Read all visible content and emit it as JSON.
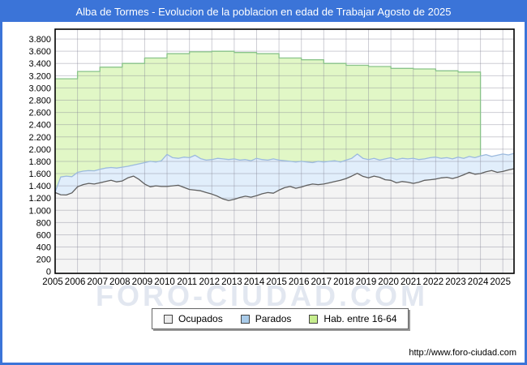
{
  "window": {
    "title": "Alba de Tormes - Evolucion de la poblacion en edad de Trabajar Agosto de 2025"
  },
  "watermark": "FORO-CIUDAD.COM",
  "footer": {
    "url": "http://www.foro-ciudad.com"
  },
  "colors": {
    "frame_blue": "#3b74d8",
    "grid": "rgba(130,130,148,0.40)",
    "axis_frame": "#000000"
  },
  "legend": {
    "items": [
      {
        "label": "Ocupados",
        "color": "#ebebeb"
      },
      {
        "label": "Parados",
        "color": "#a9cbe9"
      },
      {
        "label": "Hab. entre 16-64",
        "color": "#c7ee8e"
      }
    ]
  },
  "chart_data": {
    "type": "area",
    "title": "Alba de Tormes - Evolucion de la poblacion en edad de Trabajar Agosto de 2025",
    "xlabel": "",
    "ylabel": "",
    "x_axis": {
      "min": 2005,
      "max": 2025.5,
      "ticks": [
        "2005",
        "2006",
        "2007",
        "2008",
        "2009",
        "2010",
        "2011",
        "2012",
        "2013",
        "2014",
        "2015",
        "2016",
        "2017",
        "2018",
        "2019",
        "2020",
        "2021",
        "2022",
        "2023",
        "2024",
        "2025"
      ]
    },
    "y_axis": {
      "min": 0,
      "max": 3800,
      "tick_step": 200,
      "ticks": [
        "0",
        "200",
        "400",
        "600",
        "800",
        "1.000",
        "1.200",
        "1.400",
        "1.600",
        "1.800",
        "2.000",
        "2.200",
        "2.400",
        "2.600",
        "2.800",
        "3.000",
        "3.200",
        "3.400",
        "3.600",
        "3.800"
      ]
    },
    "grid": true,
    "legend_position": "bottom",
    "series": [
      {
        "name": "Hab. entre 16-64",
        "type": "step-annual",
        "color_line": "#8ac48a",
        "color_fill": "#e1f7c6",
        "x_start": 2005,
        "x_step": 1,
        "x_end": 2024,
        "values": [
          3150,
          3270,
          3340,
          3400,
          3490,
          3560,
          3590,
          3600,
          3580,
          3560,
          3490,
          3460,
          3400,
          3370,
          3350,
          3320,
          3310,
          3280,
          3260
        ]
      },
      {
        "name": "Parados",
        "type": "line",
        "plot": "band_top_over_ocupados",
        "color_line": "#9cbade",
        "color_fill": "#e1eefb",
        "x_start": 2005,
        "x_step": 0.25,
        "values": [
          1300,
          1545,
          1560,
          1550,
          1620,
          1640,
          1650,
          1645,
          1670,
          1690,
          1700,
          1690,
          1705,
          1720,
          1740,
          1760,
          1780,
          1800,
          1790,
          1810,
          1915,
          1860,
          1850,
          1870,
          1860,
          1900,
          1845,
          1820,
          1830,
          1850,
          1840,
          1830,
          1840,
          1820,
          1830,
          1810,
          1850,
          1830,
          1820,
          1840,
          1820,
          1810,
          1800,
          1790,
          1800,
          1790,
          1780,
          1800,
          1790,
          1800,
          1810,
          1790,
          1820,
          1850,
          1920,
          1850,
          1830,
          1850,
          1820,
          1840,
          1860,
          1830,
          1850,
          1840,
          1850,
          1830,
          1840,
          1860,
          1870,
          1850,
          1860,
          1840,
          1870,
          1850,
          1880,
          1860,
          1890,
          1910,
          1880,
          1900,
          1920,
          1905,
          1930
        ]
      },
      {
        "name": "Ocupados",
        "type": "line",
        "color_line": "#5f5f5f",
        "color_fill": "#f4f4f4",
        "x_start": 2005,
        "x_step": 0.25,
        "values": [
          1290,
          1255,
          1250,
          1285,
          1385,
          1420,
          1440,
          1430,
          1450,
          1470,
          1490,
          1465,
          1480,
          1530,
          1560,
          1505,
          1430,
          1385,
          1400,
          1390,
          1390,
          1400,
          1410,
          1375,
          1340,
          1330,
          1320,
          1290,
          1265,
          1230,
          1185,
          1160,
          1180,
          1210,
          1230,
          1215,
          1240,
          1270,
          1290,
          1280,
          1330,
          1370,
          1390,
          1360,
          1380,
          1410,
          1430,
          1420,
          1430,
          1450,
          1470,
          1490,
          1520,
          1560,
          1605,
          1555,
          1530,
          1560,
          1540,
          1500,
          1490,
          1450,
          1470,
          1460,
          1440,
          1460,
          1490,
          1500,
          1510,
          1530,
          1540,
          1520,
          1545,
          1580,
          1620,
          1590,
          1600,
          1630,
          1650,
          1620,
          1635,
          1660,
          1680
        ]
      }
    ]
  }
}
